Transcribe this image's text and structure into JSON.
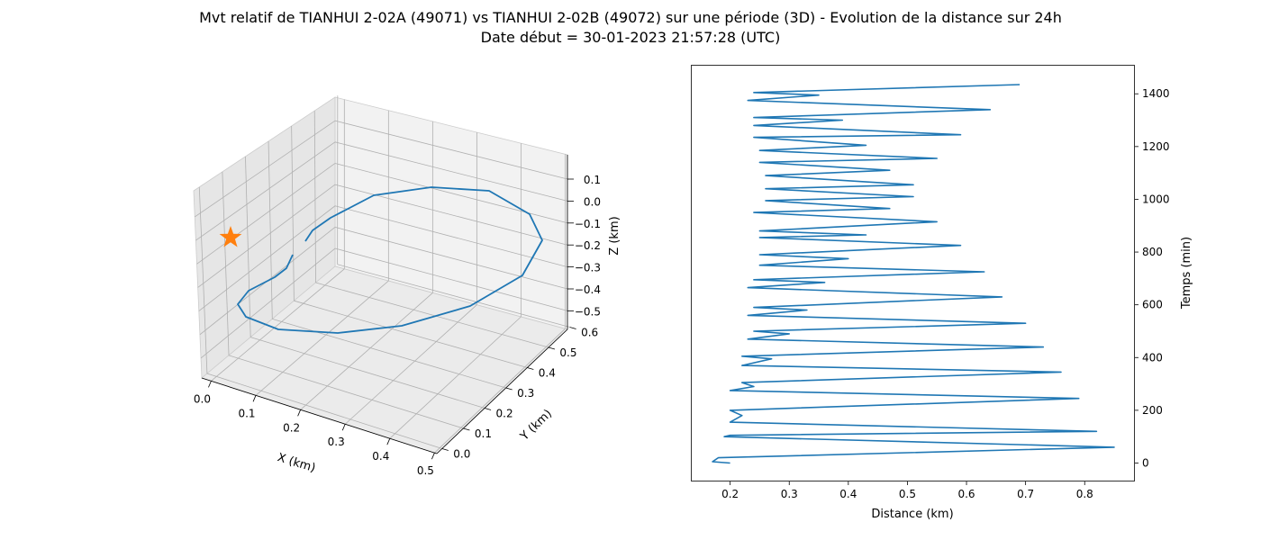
{
  "figure": {
    "title_line1": "Mvt relatif de TIANHUI 2-02A (49071) vs TIANHUI 2-02B (49072) sur une période (3D) - Evolution de la distance sur 24h",
    "title_line2": "Date début = 30-01-2023 21:57:28 (UTC)"
  },
  "chart_data": [
    {
      "type": "line3d",
      "xlabel": "X (km)",
      "ylabel": "Y (km)",
      "zlabel": "Z (km)",
      "xticks": [
        "0.0",
        "0.1",
        "0.2",
        "0.3",
        "0.4",
        "0.5"
      ],
      "yticks": [
        "0.0",
        "0.1",
        "0.2",
        "0.3",
        "0.4",
        "0.5",
        "0.6"
      ],
      "zticks": [
        "0.1",
        "0.0",
        "−0.1",
        "−0.2",
        "−0.3",
        "−0.4",
        "−0.5"
      ],
      "grid": true,
      "line_color": "#1f77b4",
      "marker_color": "#ff7f0e",
      "marker": "star",
      "trajectory_screen_trace": [
        [
          339,
          268
        ],
        [
          347,
          256
        ],
        [
          367,
          242
        ],
        [
          415,
          217
        ],
        [
          479,
          208
        ],
        [
          543,
          212
        ],
        [
          588,
          238
        ],
        [
          602,
          267
        ],
        [
          580,
          306
        ],
        [
          522,
          340
        ],
        [
          446,
          362
        ],
        [
          375,
          370
        ],
        [
          309,
          366
        ],
        [
          273,
          352
        ],
        [
          264,
          338
        ],
        [
          276,
          323
        ],
        [
          305,
          308
        ],
        [
          318,
          298
        ],
        [
          325,
          283
        ]
      ]
    },
    {
      "type": "line",
      "xlabel": "Distance (km)",
      "ylabel": "Temps (min)",
      "xlim": [
        0.135,
        0.885
      ],
      "ylim": [
        -70,
        1510
      ],
      "xticks": [
        0.2,
        0.3,
        0.4,
        0.5,
        0.6,
        0.7,
        0.8
      ],
      "yticks": [
        0,
        200,
        400,
        600,
        800,
        1000,
        1200,
        1400
      ],
      "xtick_labels": [
        "0.2",
        "0.3",
        "0.4",
        "0.5",
        "0.6",
        "0.7",
        "0.8"
      ],
      "ytick_labels": [
        "0",
        "200",
        "400",
        "600",
        "800",
        "1000",
        "1200",
        "1400"
      ],
      "grid": false,
      "color": "#1f77b4",
      "x": [
        0.2,
        0.17,
        0.18,
        0.85,
        0.19,
        0.2,
        0.82,
        0.2,
        0.22,
        0.2,
        0.79,
        0.2,
        0.24,
        0.22,
        0.76,
        0.22,
        0.27,
        0.22,
        0.73,
        0.23,
        0.3,
        0.24,
        0.7,
        0.23,
        0.33,
        0.24,
        0.66,
        0.23,
        0.36,
        0.24,
        0.63,
        0.25,
        0.4,
        0.25,
        0.59,
        0.25,
        0.43,
        0.25,
        0.55,
        0.24,
        0.47,
        0.26,
        0.51,
        0.26,
        0.51,
        0.26,
        0.47,
        0.25,
        0.55,
        0.25,
        0.43,
        0.24,
        0.59,
        0.24,
        0.39,
        0.24,
        0.64,
        0.23,
        0.35,
        0.24,
        0.69
      ],
      "y": [
        0,
        5,
        20,
        60,
        100,
        105,
        120,
        155,
        180,
        200,
        245,
        275,
        290,
        305,
        345,
        370,
        395,
        405,
        440,
        470,
        490,
        500,
        530,
        560,
        580,
        590,
        630,
        665,
        685,
        695,
        725,
        750,
        775,
        790,
        825,
        855,
        865,
        880,
        915,
        950,
        965,
        995,
        1010,
        1040,
        1055,
        1090,
        1110,
        1140,
        1155,
        1185,
        1205,
        1235,
        1245,
        1280,
        1300,
        1310,
        1340,
        1375,
        1395,
        1405,
        1435
      ]
    }
  ]
}
